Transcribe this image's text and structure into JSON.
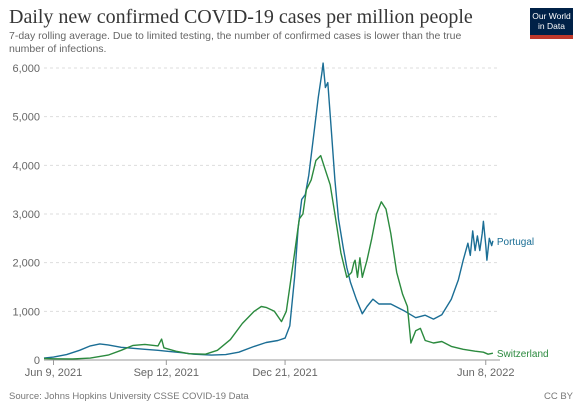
{
  "header": {
    "title": "Daily new confirmed COVID-19 cases per million people",
    "subtitle": "7-day rolling average. Due to limited testing, the number of confirmed cases is lower than the true number of infections.",
    "logo_line1": "Our World",
    "logo_line2": "in Data"
  },
  "footer": {
    "source": "Source: Johns Hopkins University CSSE COVID-19 Data",
    "license": "CC BY"
  },
  "colors": {
    "portugal": "#1b6e95",
    "switzerland": "#2b8a3e",
    "grid": "#dddddd",
    "axis": "#999999"
  },
  "chart_data": {
    "type": "line",
    "title": "Daily new confirmed COVID-19 cases per million people",
    "xlabel": "",
    "ylabel": "",
    "x_range": [
      "2021-06-01",
      "2022-06-20"
    ],
    "ylim": [
      0,
      6000
    ],
    "y_ticks": [
      0,
      1000,
      2000,
      3000,
      4000,
      5000,
      6000
    ],
    "y_tick_labels": [
      "0",
      "1,000",
      "2,000",
      "3,000",
      "4,000",
      "5,000",
      "6,000"
    ],
    "x_ticks": [
      "2021-06-09",
      "2021-09-12",
      "2021-12-21",
      "2022-06-08"
    ],
    "x_tick_labels": [
      "Jun 9, 2021",
      "Sep 12, 2021",
      "Dec 21, 2021",
      "Jun 8, 2022"
    ],
    "grid": "horizontal",
    "series": [
      {
        "name": "Portugal",
        "color": "#1b6e95",
        "points": [
          [
            "2021-06-01",
            40
          ],
          [
            "2021-06-09",
            60
          ],
          [
            "2021-06-20",
            110
          ],
          [
            "2021-07-01",
            200
          ],
          [
            "2021-07-10",
            290
          ],
          [
            "2021-07-18",
            330
          ],
          [
            "2021-07-25",
            310
          ],
          [
            "2021-08-05",
            260
          ],
          [
            "2021-08-15",
            240
          ],
          [
            "2021-08-25",
            220
          ],
          [
            "2021-09-05",
            200
          ],
          [
            "2021-09-12",
            180
          ],
          [
            "2021-09-25",
            150
          ],
          [
            "2021-10-05",
            120
          ],
          [
            "2021-10-20",
            100
          ],
          [
            "2021-11-01",
            110
          ],
          [
            "2021-11-12",
            160
          ],
          [
            "2021-11-25",
            280
          ],
          [
            "2021-12-05",
            360
          ],
          [
            "2021-12-15",
            400
          ],
          [
            "2021-12-21",
            450
          ],
          [
            "2021-12-25",
            700
          ],
          [
            "2021-12-29",
            1700
          ],
          [
            "2022-01-01",
            2700
          ],
          [
            "2022-01-04",
            3300
          ],
          [
            "2022-01-07",
            3400
          ],
          [
            "2022-01-10",
            3800
          ],
          [
            "2022-01-14",
            4600
          ],
          [
            "2022-01-18",
            5400
          ],
          [
            "2022-01-21",
            5900
          ],
          [
            "2022-01-22",
            6100
          ],
          [
            "2022-01-24",
            5600
          ],
          [
            "2022-01-26",
            5700
          ],
          [
            "2022-01-29",
            4700
          ],
          [
            "2022-02-01",
            3700
          ],
          [
            "2022-02-04",
            2900
          ],
          [
            "2022-02-08",
            2300
          ],
          [
            "2022-02-11",
            1900
          ],
          [
            "2022-02-14",
            1600
          ],
          [
            "2022-02-19",
            1250
          ],
          [
            "2022-02-24",
            950
          ],
          [
            "2022-02-28",
            1100
          ],
          [
            "2022-03-05",
            1250
          ],
          [
            "2022-03-10",
            1150
          ],
          [
            "2022-03-20",
            1150
          ],
          [
            "2022-04-01",
            1000
          ],
          [
            "2022-04-10",
            870
          ],
          [
            "2022-04-18",
            920
          ],
          [
            "2022-04-25",
            840
          ],
          [
            "2022-05-02",
            930
          ],
          [
            "2022-05-10",
            1250
          ],
          [
            "2022-05-16",
            1650
          ],
          [
            "2022-05-20",
            2050
          ],
          [
            "2022-05-24",
            2400
          ],
          [
            "2022-05-26",
            2150
          ],
          [
            "2022-05-28",
            2650
          ],
          [
            "2022-05-30",
            2250
          ],
          [
            "2022-06-01",
            2550
          ],
          [
            "2022-06-03",
            2250
          ],
          [
            "2022-06-05",
            2600
          ],
          [
            "2022-06-06",
            2850
          ],
          [
            "2022-06-08",
            2350
          ],
          [
            "2022-06-09",
            2050
          ],
          [
            "2022-06-11",
            2500
          ],
          [
            "2022-06-13",
            2350
          ],
          [
            "2022-06-14",
            2450
          ]
        ]
      },
      {
        "name": "Switzerland",
        "color": "#2b8a3e",
        "points": [
          [
            "2021-06-01",
            30
          ],
          [
            "2021-06-09",
            25
          ],
          [
            "2021-06-25",
            20
          ],
          [
            "2021-07-10",
            40
          ],
          [
            "2021-07-25",
            100
          ],
          [
            "2021-08-05",
            200
          ],
          [
            "2021-08-15",
            300
          ],
          [
            "2021-08-25",
            320
          ],
          [
            "2021-09-05",
            290
          ],
          [
            "2021-09-08",
            430
          ],
          [
            "2021-09-10",
            250
          ],
          [
            "2021-09-20",
            180
          ],
          [
            "2021-10-01",
            130
          ],
          [
            "2021-10-15",
            120
          ],
          [
            "2021-10-25",
            200
          ],
          [
            "2021-11-05",
            420
          ],
          [
            "2021-11-15",
            750
          ],
          [
            "2021-11-25",
            1000
          ],
          [
            "2021-12-01",
            1100
          ],
          [
            "2021-12-05",
            1080
          ],
          [
            "2021-12-12",
            1000
          ],
          [
            "2021-12-18",
            790
          ],
          [
            "2021-12-22",
            1000
          ],
          [
            "2021-12-25",
            1500
          ],
          [
            "2021-12-29",
            2200
          ],
          [
            "2022-01-02",
            2900
          ],
          [
            "2022-01-05",
            3000
          ],
          [
            "2022-01-08",
            3500
          ],
          [
            "2022-01-12",
            3700
          ],
          [
            "2022-01-16",
            4100
          ],
          [
            "2022-01-20",
            4200
          ],
          [
            "2022-01-24",
            3900
          ],
          [
            "2022-01-28",
            3600
          ],
          [
            "2022-02-01",
            3000
          ],
          [
            "2022-02-06",
            2200
          ],
          [
            "2022-02-11",
            1700
          ],
          [
            "2022-02-15",
            1800
          ],
          [
            "2022-02-17",
            2000
          ],
          [
            "2022-02-18",
            2050
          ],
          [
            "2022-02-20",
            1700
          ],
          [
            "2022-02-22",
            2100
          ],
          [
            "2022-02-24",
            1700
          ],
          [
            "2022-02-28",
            2050
          ],
          [
            "2022-03-04",
            2500
          ],
          [
            "2022-03-08",
            3000
          ],
          [
            "2022-03-12",
            3250
          ],
          [
            "2022-03-16",
            3100
          ],
          [
            "2022-03-20",
            2600
          ],
          [
            "2022-03-25",
            1800
          ],
          [
            "2022-03-30",
            1350
          ],
          [
            "2022-04-03",
            1100
          ],
          [
            "2022-04-06",
            350
          ],
          [
            "2022-04-10",
            600
          ],
          [
            "2022-04-14",
            650
          ],
          [
            "2022-04-18",
            400
          ],
          [
            "2022-04-25",
            350
          ],
          [
            "2022-05-02",
            380
          ],
          [
            "2022-05-10",
            280
          ],
          [
            "2022-05-20",
            220
          ],
          [
            "2022-05-30",
            180
          ],
          [
            "2022-06-06",
            160
          ],
          [
            "2022-06-10",
            120
          ],
          [
            "2022-06-14",
            140
          ]
        ]
      }
    ]
  }
}
